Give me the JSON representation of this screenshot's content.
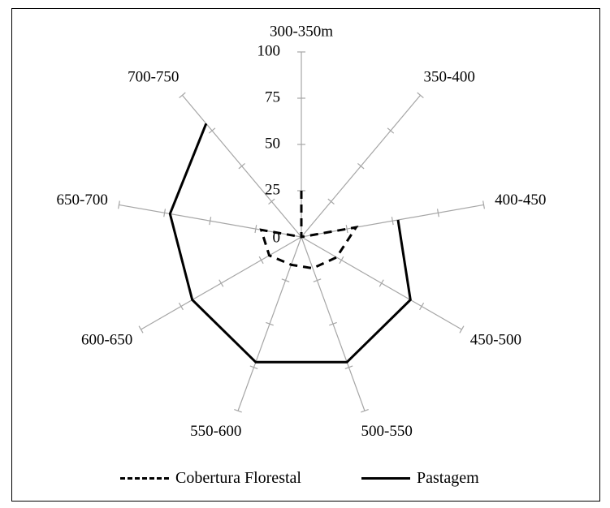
{
  "chart_data": {
    "type": "radar",
    "categories": [
      "300-350m",
      "350-400",
      "400-450",
      "450-500",
      "500-550",
      "550-600",
      "600-650",
      "650-700",
      "700-750"
    ],
    "rlim": [
      0,
      100
    ],
    "ticks": [
      0,
      25,
      50,
      75,
      100
    ],
    "tick_labels": [
      "0",
      "25",
      "50",
      "75",
      "100"
    ],
    "series": [
      {
        "name": "Cobertura Florestal",
        "style": "dashed",
        "color": "#000000",
        "values": [
          25,
          0,
          30,
          22,
          18,
          16,
          20,
          22,
          0
        ]
      },
      {
        "name": "Pastagem",
        "style": "solid",
        "color": "#000000",
        "values": [
          null,
          null,
          53,
          68,
          72,
          72,
          68,
          72,
          80
        ]
      }
    ],
    "grid": true,
    "legend_position": "bottom"
  }
}
